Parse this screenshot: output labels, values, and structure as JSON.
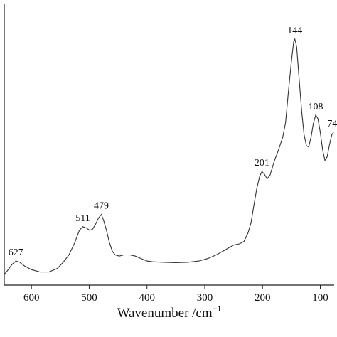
{
  "chart_data": {
    "type": "line",
    "title": "",
    "xlabel": "Wavenumber /cm",
    "xlabel_superscript": "−1",
    "ylabel": "",
    "x_axis_reversed": true,
    "xlim": [
      647,
      76
    ],
    "ylim": [
      0,
      1
    ],
    "grid": false,
    "x_ticks": [
      600,
      500,
      400,
      300,
      200,
      100
    ],
    "series": [
      {
        "values": [
          [
            647,
            0.02
          ],
          [
            640,
            0.04
          ],
          [
            634,
            0.06
          ],
          [
            627,
            0.075
          ],
          [
            620,
            0.07
          ],
          [
            612,
            0.055
          ],
          [
            600,
            0.04
          ],
          [
            585,
            0.03
          ],
          [
            570,
            0.03
          ],
          [
            555,
            0.045
          ],
          [
            545,
            0.07
          ],
          [
            535,
            0.1
          ],
          [
            525,
            0.15
          ],
          [
            517,
            0.2
          ],
          [
            511,
            0.215
          ],
          [
            505,
            0.21
          ],
          [
            499,
            0.2
          ],
          [
            494,
            0.205
          ],
          [
            489,
            0.225
          ],
          [
            484,
            0.25
          ],
          [
            479,
            0.265
          ],
          [
            475,
            0.24
          ],
          [
            470,
            0.2
          ],
          [
            465,
            0.15
          ],
          [
            460,
            0.115
          ],
          [
            455,
            0.1
          ],
          [
            448,
            0.095
          ],
          [
            440,
            0.1
          ],
          [
            430,
            0.1
          ],
          [
            420,
            0.095
          ],
          [
            410,
            0.085
          ],
          [
            400,
            0.075
          ],
          [
            390,
            0.072
          ],
          [
            370,
            0.07
          ],
          [
            350,
            0.068
          ],
          [
            330,
            0.07
          ],
          [
            310,
            0.075
          ],
          [
            295,
            0.085
          ],
          [
            280,
            0.1
          ],
          [
            265,
            0.12
          ],
          [
            250,
            0.14
          ],
          [
            240,
            0.145
          ],
          [
            232,
            0.155
          ],
          [
            225,
            0.19
          ],
          [
            220,
            0.23
          ],
          [
            215,
            0.3
          ],
          [
            210,
            0.37
          ],
          [
            205,
            0.42
          ],
          [
            201,
            0.44
          ],
          [
            197,
            0.43
          ],
          [
            192,
            0.41
          ],
          [
            187,
            0.425
          ],
          [
            180,
            0.48
          ],
          [
            172,
            0.53
          ],
          [
            165,
            0.58
          ],
          [
            160,
            0.64
          ],
          [
            155,
            0.77
          ],
          [
            150,
            0.89
          ],
          [
            146,
            0.97
          ],
          [
            144,
            0.98
          ],
          [
            141,
            0.95
          ],
          [
            137,
            0.83
          ],
          [
            132,
            0.68
          ],
          [
            128,
            0.59
          ],
          [
            124,
            0.545
          ],
          [
            120,
            0.54
          ],
          [
            116,
            0.58
          ],
          [
            112,
            0.635
          ],
          [
            108,
            0.67
          ],
          [
            104,
            0.655
          ],
          [
            100,
            0.6
          ],
          [
            96,
            0.53
          ],
          [
            92,
            0.485
          ],
          [
            88,
            0.5
          ],
          [
            84,
            0.55
          ],
          [
            80,
            0.59
          ],
          [
            77,
            0.6
          ]
        ]
      }
    ],
    "peak_labels": [
      {
        "text": "627",
        "x": 627,
        "y": 0.075
      },
      {
        "text": "511",
        "x": 511,
        "y": 0.215
      },
      {
        "text": "479",
        "x": 479,
        "y": 0.265
      },
      {
        "text": "201",
        "x": 201,
        "y": 0.44
      },
      {
        "text": "144",
        "x": 144,
        "y": 0.98
      },
      {
        "text": "108",
        "x": 108,
        "y": 0.67
      },
      {
        "text": "74",
        "x": 78,
        "y": 0.6
      }
    ]
  },
  "colors": {
    "line": "#333333",
    "axis": "#222222",
    "background": "#ffffff"
  }
}
